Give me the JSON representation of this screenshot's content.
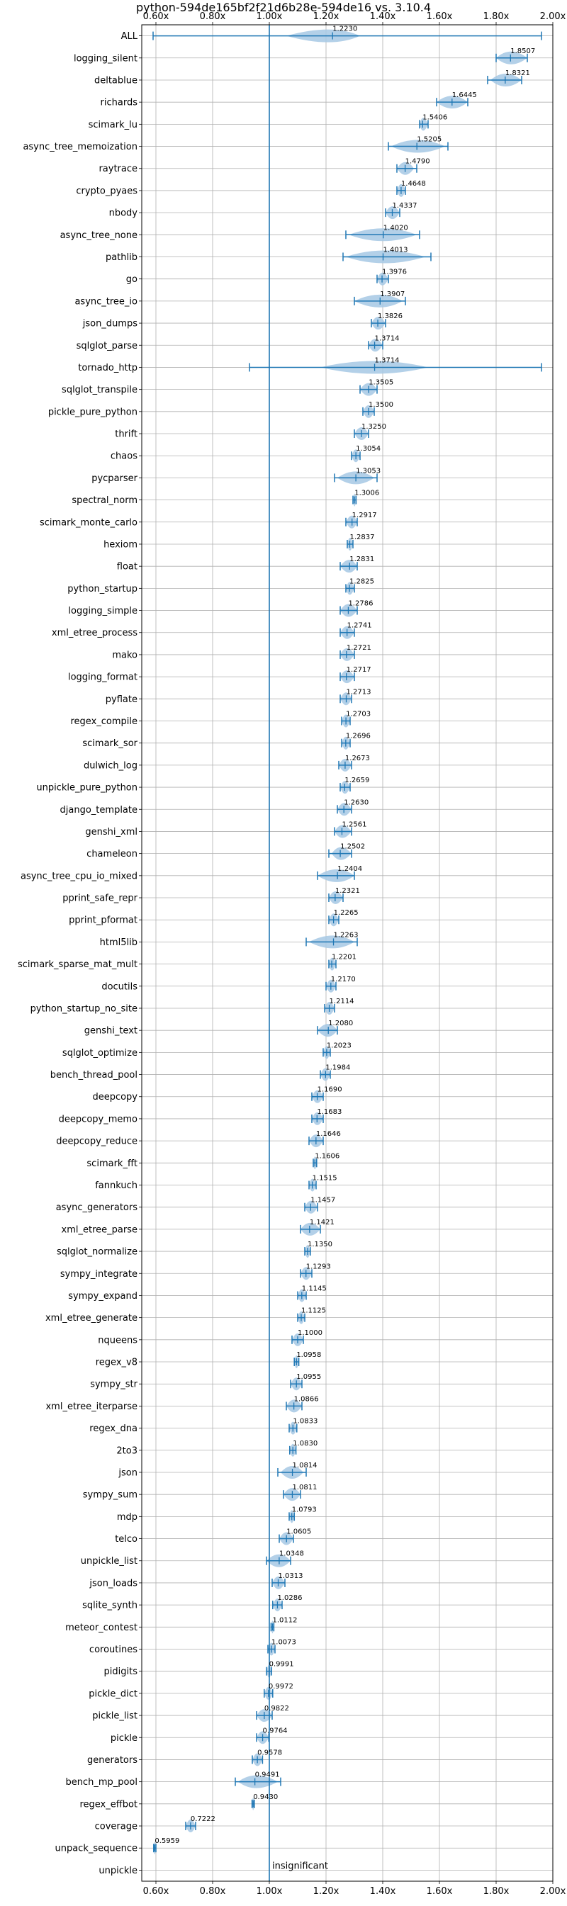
{
  "chart_data": {
    "type": "violin",
    "title": "python-594de165bf2f21d6b28e-594de16 vs. 3.10.4",
    "xlabel": "",
    "ylabel": "",
    "xlim": [
      0.55,
      2.0
    ],
    "xticks": [
      0.6,
      0.8,
      1.0,
      1.2,
      1.4,
      1.6,
      1.8,
      2.0
    ],
    "xtick_labels": [
      "0.60x",
      "0.80x",
      "1.00x",
      "1.20x",
      "1.40x",
      "1.60x",
      "1.80x",
      "2.00x"
    ],
    "grid": true,
    "reference_line": 1.0,
    "annotation": "insignificant",
    "colors": {
      "line": "#1f77b4",
      "violin": "#a6c8e4",
      "grid": "#b0b0b0"
    },
    "benchmarks": [
      {
        "name": "ALL",
        "label": "1.2230",
        "mean": 1.223,
        "min": 0.59,
        "max": 1.96,
        "lo": 1.06,
        "hi": 1.32
      },
      {
        "name": "logging_silent",
        "label": "1.8507",
        "mean": 1.8507,
        "min": 1.8,
        "max": 1.91,
        "lo": 1.8,
        "hi": 1.91
      },
      {
        "name": "deltablue",
        "label": "1.8321",
        "mean": 1.8321,
        "min": 1.77,
        "max": 1.89,
        "lo": 1.78,
        "hi": 1.89
      },
      {
        "name": "richards",
        "label": "1.6445",
        "mean": 1.6445,
        "min": 1.59,
        "max": 1.7,
        "lo": 1.59,
        "hi": 1.7
      },
      {
        "name": "scimark_lu",
        "label": "1.5406",
        "mean": 1.5406,
        "min": 1.53,
        "max": 1.56,
        "lo": 1.53,
        "hi": 1.56
      },
      {
        "name": "async_tree_memoization",
        "label": "1.5205",
        "mean": 1.5205,
        "min": 1.42,
        "max": 1.63,
        "lo": 1.43,
        "hi": 1.62
      },
      {
        "name": "raytrace",
        "label": "1.4790",
        "mean": 1.479,
        "min": 1.45,
        "max": 1.52,
        "lo": 1.45,
        "hi": 1.51
      },
      {
        "name": "crypto_pyaes",
        "label": "1.4648",
        "mean": 1.4648,
        "min": 1.45,
        "max": 1.48,
        "lo": 1.45,
        "hi": 1.48
      },
      {
        "name": "nbody",
        "label": "1.4337",
        "mean": 1.4337,
        "min": 1.41,
        "max": 1.46,
        "lo": 1.41,
        "hi": 1.46
      },
      {
        "name": "async_tree_none",
        "label": "1.4020",
        "mean": 1.402,
        "min": 1.27,
        "max": 1.53,
        "lo": 1.28,
        "hi": 1.52
      },
      {
        "name": "pathlib",
        "label": "1.4013",
        "mean": 1.4013,
        "min": 1.26,
        "max": 1.57,
        "lo": 1.27,
        "hi": 1.55
      },
      {
        "name": "go",
        "label": "1.3976",
        "mean": 1.3976,
        "min": 1.38,
        "max": 1.42,
        "lo": 1.38,
        "hi": 1.42
      },
      {
        "name": "async_tree_io",
        "label": "1.3907",
        "mean": 1.3907,
        "min": 1.3,
        "max": 1.48,
        "lo": 1.3,
        "hi": 1.47
      },
      {
        "name": "json_dumps",
        "label": "1.3826",
        "mean": 1.3826,
        "min": 1.36,
        "max": 1.41,
        "lo": 1.36,
        "hi": 1.41
      },
      {
        "name": "sqlglot_parse",
        "label": "1.3714",
        "mean": 1.3714,
        "min": 1.35,
        "max": 1.4,
        "lo": 1.35,
        "hi": 1.4
      },
      {
        "name": "tornado_http",
        "label": "1.3714",
        "mean": 1.3714,
        "min": 0.93,
        "max": 1.96,
        "lo": 1.18,
        "hi": 1.56
      },
      {
        "name": "sqlglot_transpile",
        "label": "1.3505",
        "mean": 1.3505,
        "min": 1.32,
        "max": 1.38,
        "lo": 1.32,
        "hi": 1.38
      },
      {
        "name": "pickle_pure_python",
        "label": "1.3500",
        "mean": 1.35,
        "min": 1.33,
        "max": 1.37,
        "lo": 1.33,
        "hi": 1.37
      },
      {
        "name": "thrift",
        "label": "1.3250",
        "mean": 1.325,
        "min": 1.3,
        "max": 1.35,
        "lo": 1.3,
        "hi": 1.35
      },
      {
        "name": "chaos",
        "label": "1.3054",
        "mean": 1.3054,
        "min": 1.29,
        "max": 1.32,
        "lo": 1.29,
        "hi": 1.32
      },
      {
        "name": "pycparser",
        "label": "1.3053",
        "mean": 1.3053,
        "min": 1.23,
        "max": 1.38,
        "lo": 1.24,
        "hi": 1.37
      },
      {
        "name": "spectral_norm",
        "label": "1.3006",
        "mean": 1.3006,
        "min": 1.295,
        "max": 1.306,
        "lo": 1.295,
        "hi": 1.306
      },
      {
        "name": "scimark_monte_carlo",
        "label": "1.2917",
        "mean": 1.2917,
        "min": 1.27,
        "max": 1.31,
        "lo": 1.27,
        "hi": 1.31
      },
      {
        "name": "hexiom",
        "label": "1.2837",
        "mean": 1.2837,
        "min": 1.275,
        "max": 1.295,
        "lo": 1.275,
        "hi": 1.295
      },
      {
        "name": "float",
        "label": "1.2831",
        "mean": 1.2831,
        "min": 1.25,
        "max": 1.31,
        "lo": 1.25,
        "hi": 1.31
      },
      {
        "name": "python_startup",
        "label": "1.2825",
        "mean": 1.2825,
        "min": 1.27,
        "max": 1.3,
        "lo": 1.27,
        "hi": 1.3
      },
      {
        "name": "logging_simple",
        "label": "1.2786",
        "mean": 1.2786,
        "min": 1.25,
        "max": 1.31,
        "lo": 1.25,
        "hi": 1.31
      },
      {
        "name": "xml_etree_process",
        "label": "1.2741",
        "mean": 1.2741,
        "min": 1.25,
        "max": 1.3,
        "lo": 1.25,
        "hi": 1.3
      },
      {
        "name": "mako",
        "label": "1.2721",
        "mean": 1.2721,
        "min": 1.25,
        "max": 1.3,
        "lo": 1.25,
        "hi": 1.3
      },
      {
        "name": "logging_format",
        "label": "1.2717",
        "mean": 1.2717,
        "min": 1.25,
        "max": 1.3,
        "lo": 1.25,
        "hi": 1.3
      },
      {
        "name": "pyflate",
        "label": "1.2713",
        "mean": 1.2713,
        "min": 1.25,
        "max": 1.29,
        "lo": 1.25,
        "hi": 1.29
      },
      {
        "name": "regex_compile",
        "label": "1.2703",
        "mean": 1.2703,
        "min": 1.255,
        "max": 1.285,
        "lo": 1.255,
        "hi": 1.285
      },
      {
        "name": "scimark_sor",
        "label": "1.2696",
        "mean": 1.2696,
        "min": 1.255,
        "max": 1.285,
        "lo": 1.255,
        "hi": 1.285
      },
      {
        "name": "dulwich_log",
        "label": "1.2673",
        "mean": 1.2673,
        "min": 1.245,
        "max": 1.29,
        "lo": 1.245,
        "hi": 1.29
      },
      {
        "name": "unpickle_pure_python",
        "label": "1.2659",
        "mean": 1.2659,
        "min": 1.25,
        "max": 1.285,
        "lo": 1.25,
        "hi": 1.285
      },
      {
        "name": "django_template",
        "label": "1.2630",
        "mean": 1.263,
        "min": 1.24,
        "max": 1.29,
        "lo": 1.24,
        "hi": 1.29
      },
      {
        "name": "genshi_xml",
        "label": "1.2561",
        "mean": 1.2561,
        "min": 1.23,
        "max": 1.29,
        "lo": 1.23,
        "hi": 1.29
      },
      {
        "name": "chameleon",
        "label": "1.2502",
        "mean": 1.2502,
        "min": 1.21,
        "max": 1.29,
        "lo": 1.22,
        "hi": 1.29
      },
      {
        "name": "async_tree_cpu_io_mixed",
        "label": "1.2404",
        "mean": 1.2404,
        "min": 1.17,
        "max": 1.3,
        "lo": 1.17,
        "hi": 1.3
      },
      {
        "name": "pprint_safe_repr",
        "label": "1.2321",
        "mean": 1.2321,
        "min": 1.21,
        "max": 1.26,
        "lo": 1.21,
        "hi": 1.26
      },
      {
        "name": "pprint_pformat",
        "label": "1.2265",
        "mean": 1.2265,
        "min": 1.21,
        "max": 1.245,
        "lo": 1.21,
        "hi": 1.245
      },
      {
        "name": "html5lib",
        "label": "1.2263",
        "mean": 1.2263,
        "min": 1.13,
        "max": 1.31,
        "lo": 1.14,
        "hi": 1.3
      },
      {
        "name": "scimark_sparse_mat_mult",
        "label": "1.2201",
        "mean": 1.2201,
        "min": 1.21,
        "max": 1.235,
        "lo": 1.21,
        "hi": 1.235
      },
      {
        "name": "docutils",
        "label": "1.2170",
        "mean": 1.217,
        "min": 1.2,
        "max": 1.235,
        "lo": 1.2,
        "hi": 1.235
      },
      {
        "name": "python_startup_no_site",
        "label": "1.2114",
        "mean": 1.2114,
        "min": 1.195,
        "max": 1.23,
        "lo": 1.195,
        "hi": 1.23
      },
      {
        "name": "genshi_text",
        "label": "1.2080",
        "mean": 1.208,
        "min": 1.17,
        "max": 1.24,
        "lo": 1.17,
        "hi": 1.24
      },
      {
        "name": "sqlglot_optimize",
        "label": "1.2023",
        "mean": 1.2023,
        "min": 1.19,
        "max": 1.215,
        "lo": 1.19,
        "hi": 1.215
      },
      {
        "name": "bench_thread_pool",
        "label": "1.1984",
        "mean": 1.1984,
        "min": 1.18,
        "max": 1.215,
        "lo": 1.18,
        "hi": 1.215
      },
      {
        "name": "deepcopy",
        "label": "1.1690",
        "mean": 1.169,
        "min": 1.15,
        "max": 1.19,
        "lo": 1.15,
        "hi": 1.19
      },
      {
        "name": "deepcopy_memo",
        "label": "1.1683",
        "mean": 1.1683,
        "min": 1.15,
        "max": 1.19,
        "lo": 1.15,
        "hi": 1.19
      },
      {
        "name": "deepcopy_reduce",
        "label": "1.1646",
        "mean": 1.1646,
        "min": 1.14,
        "max": 1.19,
        "lo": 1.14,
        "hi": 1.19
      },
      {
        "name": "scimark_fft",
        "label": "1.1606",
        "mean": 1.1606,
        "min": 1.155,
        "max": 1.167,
        "lo": 1.155,
        "hi": 1.167
      },
      {
        "name": "fannkuch",
        "label": "1.1515",
        "mean": 1.1515,
        "min": 1.14,
        "max": 1.165,
        "lo": 1.14,
        "hi": 1.165
      },
      {
        "name": "async_generators",
        "label": "1.1457",
        "mean": 1.1457,
        "min": 1.125,
        "max": 1.17,
        "lo": 1.125,
        "hi": 1.17
      },
      {
        "name": "xml_etree_parse",
        "label": "1.1421",
        "mean": 1.1421,
        "min": 1.11,
        "max": 1.18,
        "lo": 1.11,
        "hi": 1.18
      },
      {
        "name": "sqlglot_normalize",
        "label": "1.1350",
        "mean": 1.135,
        "min": 1.125,
        "max": 1.145,
        "lo": 1.125,
        "hi": 1.145
      },
      {
        "name": "sympy_integrate",
        "label": "1.1293",
        "mean": 1.1293,
        "min": 1.11,
        "max": 1.15,
        "lo": 1.11,
        "hi": 1.15
      },
      {
        "name": "sympy_expand",
        "label": "1.1145",
        "mean": 1.1145,
        "min": 1.1,
        "max": 1.13,
        "lo": 1.1,
        "hi": 1.13
      },
      {
        "name": "xml_etree_generate",
        "label": "1.1125",
        "mean": 1.1125,
        "min": 1.1,
        "max": 1.125,
        "lo": 1.1,
        "hi": 1.125
      },
      {
        "name": "nqueens",
        "label": "1.1000",
        "mean": 1.1,
        "min": 1.08,
        "max": 1.12,
        "lo": 1.08,
        "hi": 1.12
      },
      {
        "name": "regex_v8",
        "label": "1.0958",
        "mean": 1.0958,
        "min": 1.088,
        "max": 1.104,
        "lo": 1.088,
        "hi": 1.104
      },
      {
        "name": "sympy_str",
        "label": "1.0955",
        "mean": 1.0955,
        "min": 1.075,
        "max": 1.115,
        "lo": 1.075,
        "hi": 1.115
      },
      {
        "name": "xml_etree_iterparse",
        "label": "1.0866",
        "mean": 1.0866,
        "min": 1.06,
        "max": 1.115,
        "lo": 1.06,
        "hi": 1.115
      },
      {
        "name": "regex_dna",
        "label": "1.0833",
        "mean": 1.0833,
        "min": 1.07,
        "max": 1.097,
        "lo": 1.07,
        "hi": 1.097
      },
      {
        "name": "2to3",
        "label": "1.0830",
        "mean": 1.083,
        "min": 1.072,
        "max": 1.094,
        "lo": 1.072,
        "hi": 1.094
      },
      {
        "name": "json",
        "label": "1.0814",
        "mean": 1.0814,
        "min": 1.03,
        "max": 1.13,
        "lo": 1.04,
        "hi": 1.12
      },
      {
        "name": "sympy_sum",
        "label": "1.0811",
        "mean": 1.0811,
        "min": 1.05,
        "max": 1.11,
        "lo": 1.05,
        "hi": 1.11
      },
      {
        "name": "mdp",
        "label": "1.0793",
        "mean": 1.0793,
        "min": 1.07,
        "max": 1.088,
        "lo": 1.07,
        "hi": 1.088
      },
      {
        "name": "telco",
        "label": "1.0605",
        "mean": 1.0605,
        "min": 1.035,
        "max": 1.085,
        "lo": 1.035,
        "hi": 1.085
      },
      {
        "name": "unpickle_list",
        "label": "1.0348",
        "mean": 1.0348,
        "min": 0.99,
        "max": 1.075,
        "lo": 0.99,
        "hi": 1.075
      },
      {
        "name": "json_loads",
        "label": "1.0313",
        "mean": 1.0313,
        "min": 1.01,
        "max": 1.055,
        "lo": 1.01,
        "hi": 1.055
      },
      {
        "name": "sqlite_synth",
        "label": "1.0286",
        "mean": 1.0286,
        "min": 1.012,
        "max": 1.045,
        "lo": 1.012,
        "hi": 1.045
      },
      {
        "name": "meteor_contest",
        "label": "1.0112",
        "mean": 1.0112,
        "min": 1.006,
        "max": 1.016,
        "lo": 1.006,
        "hi": 1.016
      },
      {
        "name": "coroutines",
        "label": "1.0073",
        "mean": 1.0073,
        "min": 0.995,
        "max": 1.02,
        "lo": 0.995,
        "hi": 1.02
      },
      {
        "name": "pidigits",
        "label": "0.9991",
        "mean": 0.9991,
        "min": 0.99,
        "max": 1.008,
        "lo": 0.99,
        "hi": 1.008
      },
      {
        "name": "pickle_dict",
        "label": "0.9972",
        "mean": 0.9972,
        "min": 0.982,
        "max": 1.012,
        "lo": 0.982,
        "hi": 1.012
      },
      {
        "name": "pickle_list",
        "label": "0.9822",
        "mean": 0.9822,
        "min": 0.955,
        "max": 1.01,
        "lo": 0.955,
        "hi": 1.01
      },
      {
        "name": "pickle",
        "label": "0.9764",
        "mean": 0.9764,
        "min": 0.955,
        "max": 0.998,
        "lo": 0.955,
        "hi": 0.998
      },
      {
        "name": "generators",
        "label": "0.9578",
        "mean": 0.9578,
        "min": 0.94,
        "max": 0.976,
        "lo": 0.94,
        "hi": 0.976
      },
      {
        "name": "bench_mp_pool",
        "label": "0.9491",
        "mean": 0.9491,
        "min": 0.88,
        "max": 1.04,
        "lo": 0.89,
        "hi": 1.03
      },
      {
        "name": "regex_effbot",
        "label": "0.9430",
        "mean": 0.943,
        "min": 0.939,
        "max": 0.947,
        "lo": 0.939,
        "hi": 0.947
      },
      {
        "name": "coverage",
        "label": "0.7222",
        "mean": 0.7222,
        "min": 0.705,
        "max": 0.74,
        "lo": 0.705,
        "hi": 0.74
      },
      {
        "name": "unpack_sequence",
        "label": "0.5959",
        "mean": 0.5959,
        "min": 0.592,
        "max": 0.6,
        "lo": 0.592,
        "hi": 0.6
      },
      {
        "name": "unpickle",
        "label": "",
        "mean": null,
        "min": null,
        "max": null,
        "lo": null,
        "hi": null
      }
    ]
  }
}
